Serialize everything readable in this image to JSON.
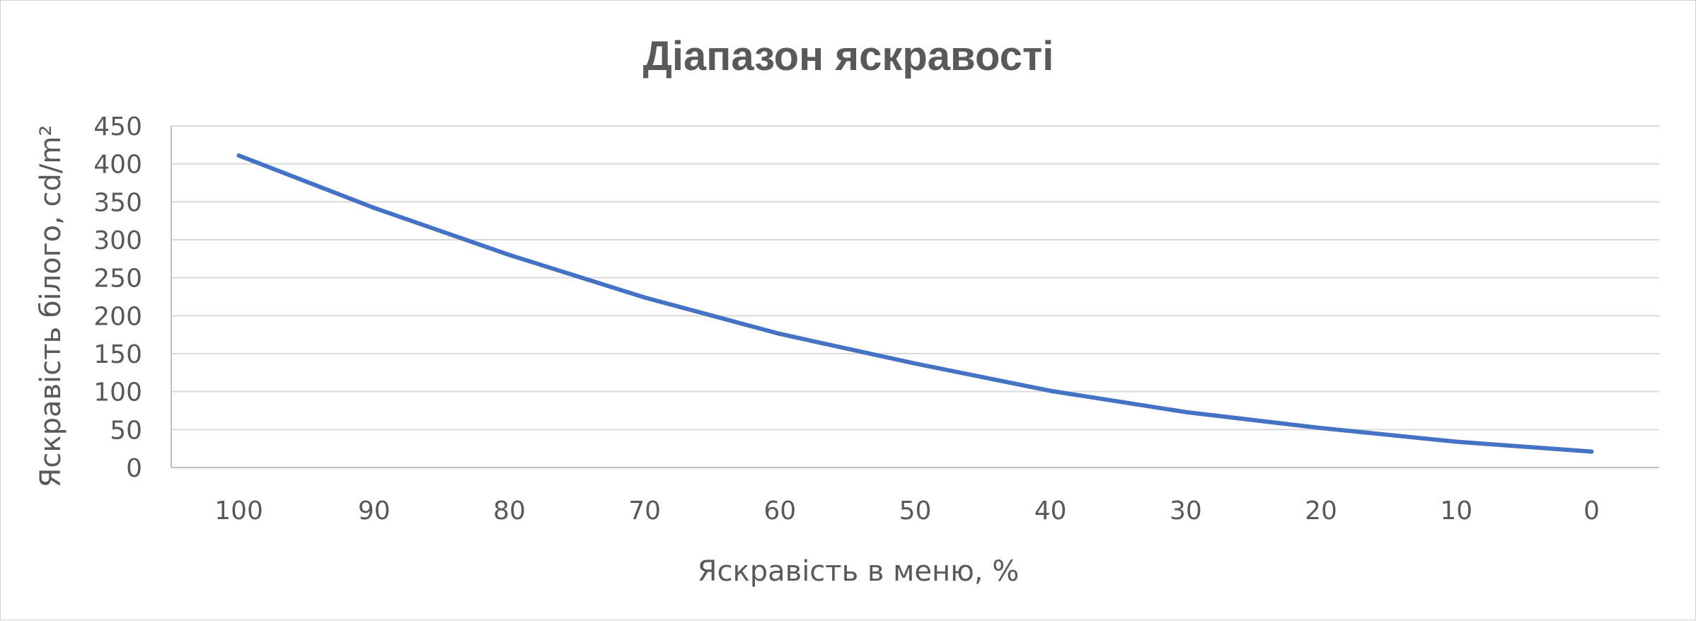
{
  "chart_data": {
    "type": "line",
    "title": "Діапазон яскравості",
    "xlabel": "Яскравість в меню, %",
    "ylabel": "Яскравість білого,  cd/m²",
    "categories": [
      "100",
      "90",
      "80",
      "70",
      "60",
      "50",
      "40",
      "30",
      "20",
      "10",
      "0"
    ],
    "series": [
      {
        "values": [
          411,
          342,
          280,
          224,
          176,
          137,
          101,
          73,
          52,
          34,
          21
        ],
        "color": "#4472c4"
      }
    ],
    "ylim": [
      0,
      450
    ],
    "yticks": [
      "0",
      "50",
      "100",
      "150",
      "200",
      "250",
      "300",
      "350",
      "400",
      "450"
    ],
    "grid": true,
    "legend": "none"
  }
}
